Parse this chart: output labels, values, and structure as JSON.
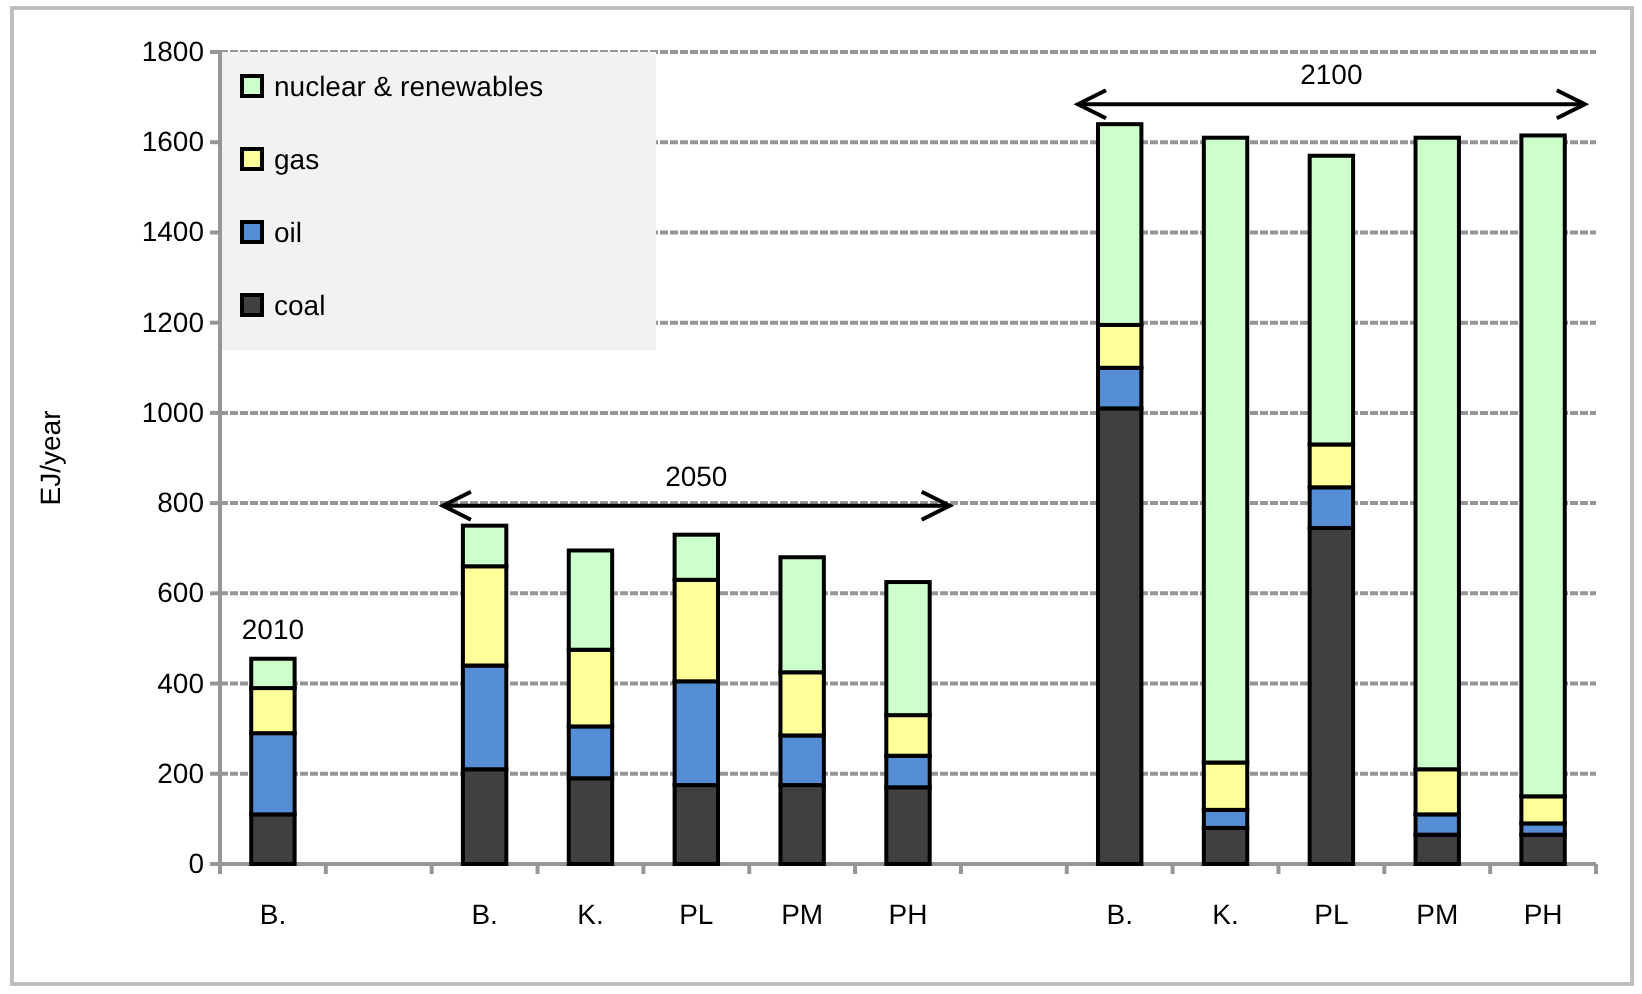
{
  "chart_data": {
    "type": "bar",
    "stacked": true,
    "ylabel": "EJ/year",
    "categories": [
      "B.",
      null,
      "B.",
      "K.",
      "PL",
      "PM",
      "PH",
      null,
      "B.",
      "K.",
      "PL",
      "PM",
      "PH"
    ],
    "series": [
      {
        "name": "coal",
        "color": "#404040",
        "values": [
          110,
          null,
          210,
          190,
          175,
          175,
          170,
          null,
          1010,
          80,
          745,
          65,
          65
        ]
      },
      {
        "name": "oil",
        "color": "#558ed5",
        "values": [
          180,
          null,
          230,
          115,
          230,
          110,
          70,
          null,
          90,
          40,
          90,
          45,
          25
        ]
      },
      {
        "name": "gas",
        "color": "#ffff99",
        "values": [
          100,
          null,
          220,
          170,
          225,
          140,
          90,
          null,
          95,
          105,
          95,
          100,
          60
        ]
      },
      {
        "name": "nuclear & renewables",
        "color": "#ccffcc",
        "values": [
          65,
          null,
          90,
          220,
          100,
          255,
          295,
          null,
          445,
          1385,
          640,
          1400,
          1465
        ]
      }
    ],
    "ylim": [
      0,
      1800
    ],
    "yticks": [
      0,
      200,
      400,
      600,
      800,
      1000,
      1200,
      1400,
      1600,
      1800
    ],
    "grid": "y",
    "legend": "top left",
    "annotations": [
      "2010",
      "2050",
      "2100"
    ]
  }
}
